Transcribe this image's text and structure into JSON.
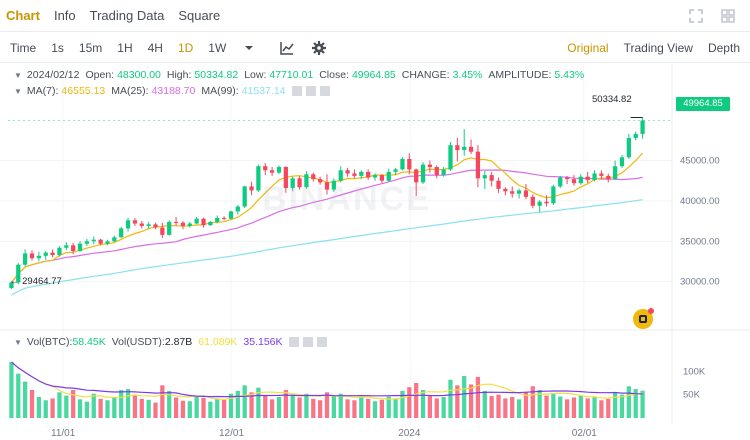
{
  "tabs": [
    {
      "label": "Chart",
      "active": true
    },
    {
      "label": "Info",
      "active": false
    },
    {
      "label": "Trading Data",
      "active": false
    },
    {
      "label": "Square",
      "active": false
    }
  ],
  "toolbar": {
    "time_label": "Time",
    "intervals": [
      "1s",
      "15m",
      "1H",
      "4H",
      "1D",
      "1W"
    ],
    "active_interval": "1D",
    "view_modes": [
      {
        "label": "Original",
        "active": true
      },
      {
        "label": "Trading View",
        "active": false
      },
      {
        "label": "Depth",
        "active": false
      }
    ]
  },
  "ohlc": {
    "date": "2024/02/12",
    "open_label": "Open:",
    "open": "48300.00",
    "high_label": "High:",
    "high": "50334.82",
    "low_label": "Low:",
    "low": "47710.01",
    "close_label": "Close:",
    "close": "49964.85",
    "change_label": "CHANGE:",
    "change": "3.45%",
    "amplitude_label": "AMPLITUDE:",
    "amplitude": "5.43%"
  },
  "ma": {
    "ma7_label": "MA(7):",
    "ma7": "46555.13",
    "ma25_label": "MA(25):",
    "ma25": "43188.70",
    "ma99_label": "MA(99):",
    "ma99": "41537.14"
  },
  "volume": {
    "btc_label": "Vol(BTC):",
    "btc": "58.45K",
    "usdt_label": "Vol(USDT):",
    "usdt": "2.87B",
    "ma_a": "61.089K",
    "ma_b": "35.156K"
  },
  "markers": {
    "last_price": "49964.85",
    "high_marker": "50334.82",
    "low_marker": "29464.77"
  },
  "watermark": "BINANCE",
  "colors": {
    "up": "#0ecb81",
    "down": "#f6465d",
    "ma7": "#f0b90b",
    "ma25": "#d86de8",
    "ma99": "#8ae0f0",
    "vol_ma_a": "#f0e040",
    "vol_ma_b": "#7c3aed",
    "accent": "#c99400"
  },
  "chart_data": {
    "type": "candlestick",
    "price_axis": {
      "ticks": [
        "45000.00",
        "40000.00",
        "35000.00",
        "30000.00"
      ],
      "ylim": [
        25500,
        52500
      ]
    },
    "volume_axis": {
      "ticks": [
        "100K",
        "50K"
      ],
      "ylim": [
        0,
        150000
      ]
    },
    "x_ticks": [
      "11/01",
      "12/01",
      "2024",
      "02/01"
    ],
    "candles": [
      [
        29200,
        30100,
        29100,
        29900
      ],
      [
        29900,
        32300,
        29700,
        32100
      ],
      [
        32100,
        34000,
        31900,
        33500
      ],
      [
        33500,
        33900,
        32600,
        32900
      ],
      [
        32900,
        33700,
        32500,
        33200
      ],
      [
        33200,
        33800,
        32700,
        33600
      ],
      [
        33600,
        34000,
        33000,
        33300
      ],
      [
        33300,
        34400,
        33100,
        34200
      ],
      [
        34200,
        34900,
        33900,
        34500
      ],
      [
        34500,
        34800,
        33400,
        33800
      ],
      [
        33800,
        35000,
        33700,
        34700
      ],
      [
        34700,
        35300,
        34400,
        35000
      ],
      [
        35000,
        35600,
        34600,
        35200
      ],
      [
        35200,
        35300,
        34500,
        34700
      ],
      [
        34700,
        35200,
        34500,
        35000
      ],
      [
        35000,
        35700,
        34900,
        35500
      ],
      [
        35500,
        36800,
        35400,
        36600
      ],
      [
        36600,
        37900,
        36200,
        37600
      ],
      [
        37600,
        37900,
        36900,
        37200
      ],
      [
        37200,
        37500,
        36600,
        36900
      ],
      [
        36900,
        37400,
        36500,
        37100
      ],
      [
        37100,
        37300,
        36500,
        36700
      ],
      [
        36700,
        37300,
        35400,
        35800
      ],
      [
        35800,
        37600,
        35700,
        37400
      ],
      [
        37400,
        38000,
        36900,
        37300
      ],
      [
        37300,
        37500,
        36500,
        36900
      ],
      [
        36900,
        37400,
        36700,
        37200
      ],
      [
        37200,
        38000,
        37100,
        37800
      ],
      [
        37800,
        37900,
        36700,
        37000
      ],
      [
        37000,
        37500,
        36900,
        37400
      ],
      [
        37400,
        38200,
        37200,
        37900
      ],
      [
        37900,
        38100,
        37600,
        37800
      ],
      [
        37800,
        38800,
        37700,
        38700
      ],
      [
        38700,
        39500,
        38300,
        39300
      ],
      [
        39300,
        41900,
        39100,
        41800
      ],
      [
        41800,
        42400,
        40700,
        41300
      ],
      [
        41300,
        44500,
        41100,
        44300
      ],
      [
        44300,
        44700,
        43200,
        43800
      ],
      [
        43800,
        44200,
        43100,
        43500
      ],
      [
        43500,
        44400,
        43300,
        44200
      ],
      [
        44200,
        44300,
        41000,
        41600
      ],
      [
        41600,
        43000,
        41200,
        42800
      ],
      [
        42800,
        43100,
        41400,
        41700
      ],
      [
        41700,
        43700,
        41500,
        43300
      ],
      [
        43300,
        43500,
        42400,
        42700
      ],
      [
        42700,
        43000,
        42000,
        42300
      ],
      [
        42300,
        43300,
        40800,
        41400
      ],
      [
        41400,
        42800,
        41100,
        42500
      ],
      [
        42500,
        44300,
        42300,
        43800
      ],
      [
        43800,
        44100,
        43000,
        43400
      ],
      [
        43400,
        43900,
        42800,
        43100
      ],
      [
        43100,
        43800,
        42700,
        43600
      ],
      [
        43600,
        43900,
        42600,
        42900
      ],
      [
        42900,
        43400,
        42500,
        43200
      ],
      [
        43200,
        43300,
        42200,
        42500
      ],
      [
        42500,
        44000,
        42400,
        43600
      ],
      [
        43600,
        44100,
        43200,
        43900
      ],
      [
        43900,
        45400,
        43800,
        45200
      ],
      [
        45200,
        45900,
        43300,
        43900
      ],
      [
        43900,
        44000,
        40600,
        42300
      ],
      [
        42300,
        44800,
        42100,
        44500
      ],
      [
        44500,
        45000,
        43500,
        44200
      ],
      [
        44200,
        44400,
        42800,
        43200
      ],
      [
        43200,
        44200,
        43000,
        43900
      ],
      [
        43900,
        47300,
        43700,
        46900
      ],
      [
        46900,
        47800,
        44900,
        46300
      ],
      [
        46300,
        48900,
        45600,
        46700
      ],
      [
        46700,
        47600,
        45800,
        46100
      ],
      [
        46100,
        46900,
        41700,
        42800
      ],
      [
        42800,
        43700,
        41500,
        43200
      ],
      [
        43200,
        43600,
        41800,
        42500
      ],
      [
        42500,
        42900,
        41000,
        41500
      ],
      [
        41500,
        41700,
        40700,
        41200
      ],
      [
        41200,
        41800,
        40400,
        40900
      ],
      [
        40900,
        41500,
        40300,
        41300
      ],
      [
        41300,
        42100,
        40200,
        40500
      ],
      [
        40500,
        40800,
        39100,
        39400
      ],
      [
        39400,
        40100,
        38600,
        39900
      ],
      [
        39900,
        40700,
        39300,
        39700
      ],
      [
        39700,
        42000,
        39500,
        41800
      ],
      [
        41800,
        43100,
        41600,
        42900
      ],
      [
        42900,
        43100,
        42100,
        42700
      ],
      [
        42700,
        43200,
        41900,
        42200
      ],
      [
        42200,
        43300,
        42000,
        43000
      ],
      [
        43000,
        43600,
        42200,
        42600
      ],
      [
        42600,
        43800,
        42400,
        43400
      ],
      [
        43400,
        43800,
        42700,
        43100
      ],
      [
        43100,
        43400,
        42300,
        42700
      ],
      [
        42700,
        45000,
        42600,
        44300
      ],
      [
        44300,
        45700,
        44100,
        45400
      ],
      [
        45400,
        48300,
        45200,
        47800
      ],
      [
        47800,
        48600,
        47500,
        48300
      ],
      [
        48300,
        50334.82,
        47710.01,
        49964.85
      ]
    ],
    "volumes": [
      120000,
      95000,
      78000,
      60000,
      45000,
      38000,
      42000,
      55000,
      48000,
      60000,
      40000,
      35000,
      52000,
      41000,
      38000,
      44000,
      60000,
      62000,
      48000,
      41000,
      39000,
      33000,
      70000,
      58000,
      44000,
      37000,
      36000,
      48000,
      43000,
      35000,
      42000,
      39000,
      52000,
      58000,
      70000,
      55000,
      65000,
      48000,
      40000,
      45000,
      60000,
      50000,
      44000,
      52000,
      41000,
      38000,
      55000,
      47000,
      52000,
      40000,
      38000,
      44000,
      41000,
      36000,
      39000,
      46000,
      42000,
      58000,
      66000,
      75000,
      60000,
      47000,
      42000,
      45000,
      82000,
      70000,
      90000,
      72000,
      88000,
      58000,
      47000,
      50000,
      42000,
      45000,
      40000,
      55000,
      68000,
      60000,
      48000,
      52000,
      46000,
      40000,
      44000,
      48000,
      42000,
      45000,
      38000,
      41000,
      55000,
      50000,
      68000,
      62000,
      58450
    ]
  }
}
